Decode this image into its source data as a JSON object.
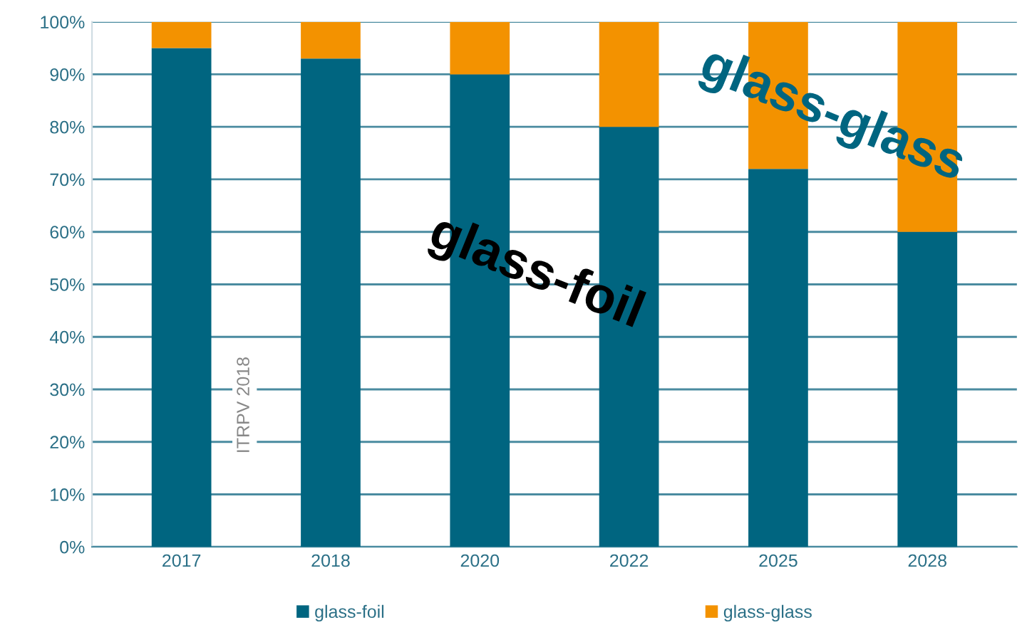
{
  "chart_data": {
    "type": "bar",
    "stacked": true,
    "categories": [
      "2017",
      "2018",
      "2020",
      "2022",
      "2025",
      "2028"
    ],
    "series": [
      {
        "name": "glass-foil",
        "color": "#006580",
        "values": [
          95,
          93,
          90,
          80,
          72,
          60
        ]
      },
      {
        "name": "glass-glass",
        "color": "#f39200",
        "values": [
          5,
          7,
          10,
          20,
          28,
          40
        ]
      }
    ],
    "ylim": [
      0,
      100
    ],
    "yticks": [
      {
        "value": 0,
        "label": "0%"
      },
      {
        "value": 10,
        "label": "10%"
      },
      {
        "value": 20,
        "label": "20%"
      },
      {
        "value": 30,
        "label": "30%"
      },
      {
        "value": 40,
        "label": "40%"
      },
      {
        "value": 50,
        "label": "50%"
      },
      {
        "value": 60,
        "label": "60%"
      },
      {
        "value": 70,
        "label": "70%"
      },
      {
        "value": 80,
        "label": "80%"
      },
      {
        "value": 90,
        "label": "90%"
      },
      {
        "value": 100,
        "label": "100%"
      }
    ],
    "grid": "y",
    "legend": "bottom",
    "annotations": [
      "glass-foil",
      "glass-glass",
      "ITRPV 2018"
    ]
  }
}
